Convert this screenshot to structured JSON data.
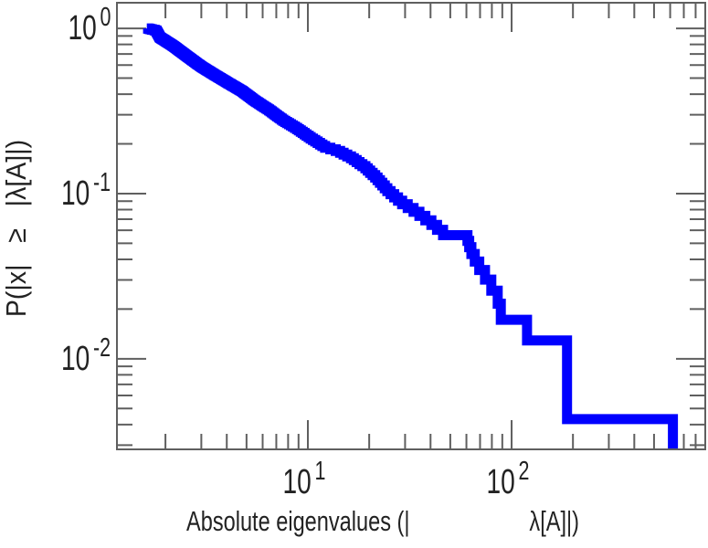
{
  "chart_data": {
    "type": "line",
    "subtype": "step-ccdf-loglog",
    "title": "",
    "xlabel": "Absolute eigenvalues (|                    λ[A]|)",
    "ylabel": "P(|x|   ≥   |λ[A]|)",
    "x_scale": "log",
    "y_scale": "log",
    "xlim": [
      1.156,
      892
    ],
    "ylim": [
      0.00283,
      1.43
    ],
    "grid": false,
    "legend": false,
    "x_major_ticks": [
      {
        "value": 10,
        "base": "10",
        "exp": "1"
      },
      {
        "value": 100,
        "base": "10",
        "exp": "2"
      }
    ],
    "x_minor_ticks": [
      2,
      3,
      4,
      5,
      6,
      7,
      8,
      9,
      20,
      30,
      40,
      50,
      60,
      70,
      80,
      90,
      200,
      300,
      400,
      500,
      600,
      700,
      800
    ],
    "y_major_ticks": [
      {
        "value": 1,
        "base": "10",
        "exp": "0"
      },
      {
        "value": 0.1,
        "base": "10",
        "exp": "-1"
      },
      {
        "value": 0.01,
        "base": "10",
        "exp": "-2"
      }
    ],
    "y_minor_ticks": [
      0.9,
      0.8,
      0.7,
      0.6,
      0.5,
      0.4,
      0.3,
      0.2,
      0.09,
      0.08,
      0.07,
      0.06,
      0.05,
      0.04,
      0.03,
      0.02,
      0.009,
      0.008,
      0.007,
      0.006,
      0.005,
      0.004,
      0.003
    ],
    "n_samples": 232,
    "min_abs_eigenvalue": 1.62,
    "max_abs_eigenvalue": 619,
    "line_color": "#0000ff",
    "line_width": 11,
    "axis_color": "#5f5f5f",
    "text_color": "#222222",
    "background": "#ffffff",
    "ccdf_trace": [
      [
        1.62,
        1.0
      ],
      [
        1.8,
        0.97
      ],
      [
        1.88,
        0.88
      ],
      [
        2.19,
        0.78
      ],
      [
        2.58,
        0.67
      ],
      [
        3.0,
        0.585
      ],
      [
        3.5,
        0.52
      ],
      [
        4.07,
        0.465
      ],
      [
        4.76,
        0.415
      ],
      [
        5.55,
        0.36
      ],
      [
        6.48,
        0.318
      ],
      [
        7.57,
        0.276
      ],
      [
        8.84,
        0.246
      ],
      [
        10.3,
        0.216
      ],
      [
        12.1,
        0.19
      ],
      [
        14.1,
        0.179
      ],
      [
        16.4,
        0.163
      ],
      [
        19.2,
        0.142
      ],
      [
        21.7,
        0.123
      ],
      [
        24.8,
        0.102
      ],
      [
        28.9,
        0.0865
      ],
      [
        33.8,
        0.0761
      ],
      [
        39.5,
        0.0662
      ],
      [
        45.1,
        0.0574
      ],
      [
        46.5,
        0.0555
      ],
      [
        60.0,
        0.0545
      ],
      [
        63.0,
        0.044
      ],
      [
        67.6,
        0.0363
      ],
      [
        73.3,
        0.0308
      ],
      [
        81.2,
        0.0247
      ],
      [
        88.3,
        0.0197
      ],
      [
        88.5,
        0.017241
      ],
      [
        119,
        0.017241
      ],
      [
        119,
        0.012931
      ],
      [
        165,
        0.012931
      ],
      [
        165,
        0.008621
      ],
      [
        187,
        0.008621
      ],
      [
        187,
        0.00431
      ],
      [
        619,
        0.00431
      ],
      [
        619,
        0.00283
      ]
    ]
  }
}
